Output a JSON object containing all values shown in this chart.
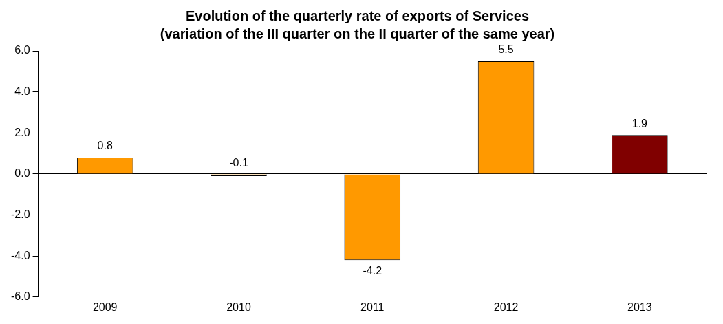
{
  "chart_data": {
    "type": "bar",
    "title": "Evolution of the quarterly rate of exports of Services",
    "subtitle": "(variation of the III quarter on the II quarter of the same year)",
    "categories": [
      "2009",
      "2010",
      "2011",
      "2012",
      "2013"
    ],
    "values": [
      0.8,
      -0.1,
      -4.2,
      5.5,
      1.9
    ],
    "colors": [
      "#ff9900",
      "#ff9900",
      "#ff9900",
      "#ff9900",
      "#800000"
    ],
    "ylim": [
      -6,
      6
    ],
    "yticks": [
      {
        "value": -6,
        "label": "-6.0"
      },
      {
        "value": -4,
        "label": "-4.0"
      },
      {
        "value": -2,
        "label": "-2.0"
      },
      {
        "value": 0,
        "label": "0.0"
      },
      {
        "value": 2,
        "label": "2.0"
      },
      {
        "value": 4,
        "label": "4.0"
      },
      {
        "value": 6,
        "label": "6.0"
      }
    ],
    "data_labels": true,
    "legend": false
  }
}
